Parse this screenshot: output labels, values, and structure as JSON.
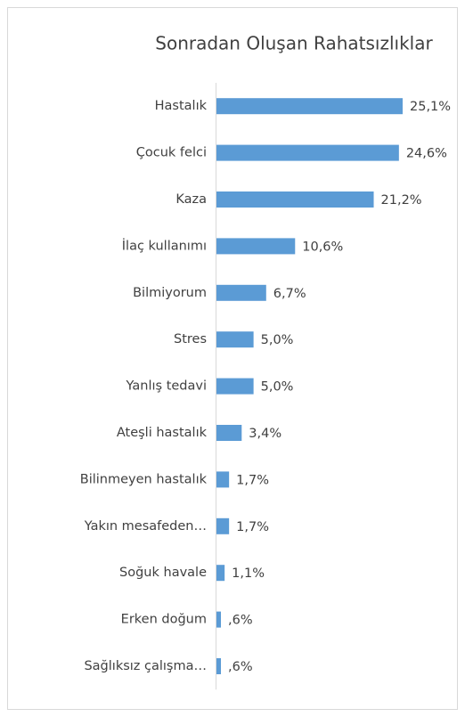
{
  "chart_data": {
    "type": "bar",
    "orientation": "horizontal",
    "title": "Sonradan Oluşan Rahatsızlıklar",
    "categories": [
      "Hastalık",
      "Çocuk felci",
      "Kaza",
      "İlaç kullanımı",
      "Bilmiyorum",
      "Stres",
      "Yanlış tedavi",
      "Ateşli hastalık",
      "Bilinmeyen hastalık",
      "Yakın mesafeden…",
      "Soğuk havale",
      "Erken doğum",
      "Sağlıksız çalışma…"
    ],
    "values": [
      25.1,
      24.6,
      21.2,
      10.6,
      6.7,
      5.0,
      5.0,
      3.4,
      1.7,
      1.7,
      1.1,
      0.6,
      0.6
    ],
    "value_labels": [
      "25,1%",
      "24,6%",
      "21,2%",
      "10,6%",
      "6,7%",
      "5,0%",
      "5,0%",
      "3,4%",
      "1,7%",
      "1,7%",
      "1,1%",
      ",6%",
      ",6%"
    ],
    "color": "#5b9bd5"
  }
}
